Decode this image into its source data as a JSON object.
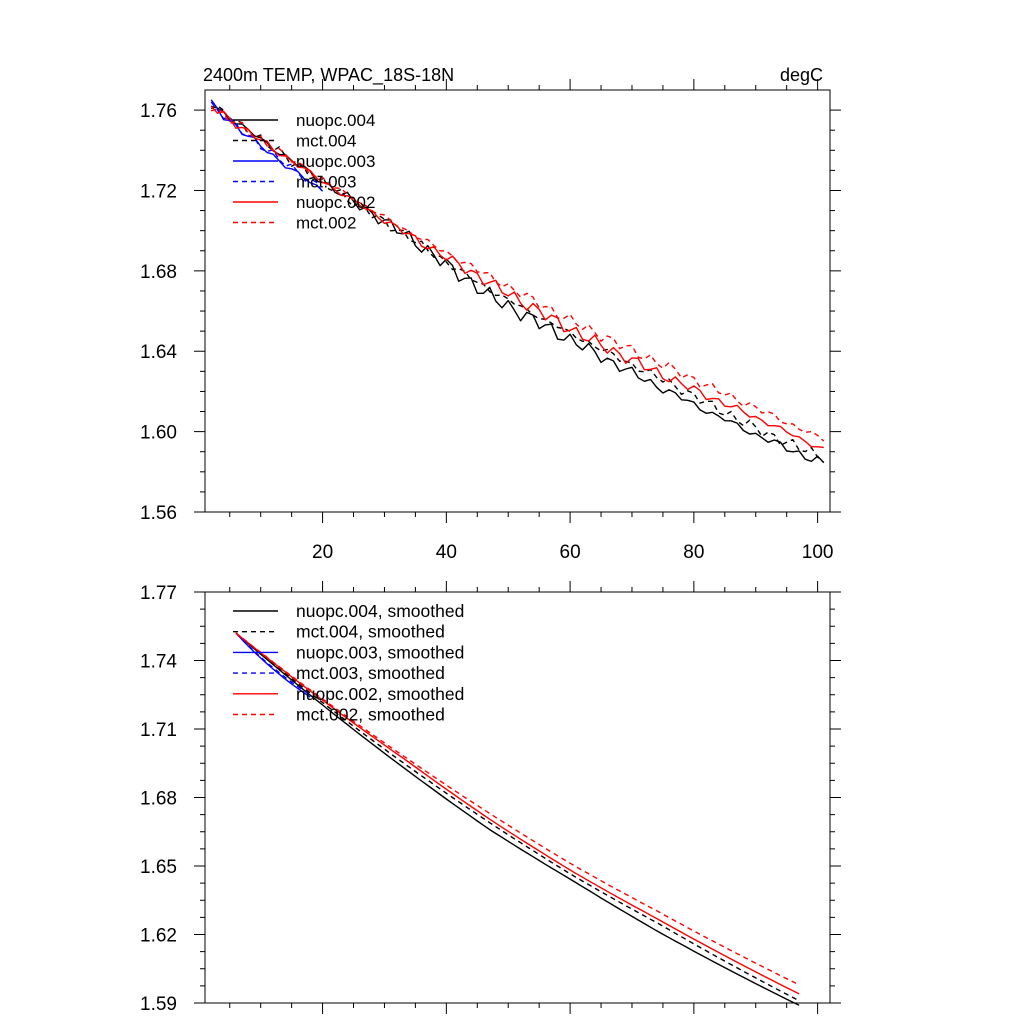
{
  "chart_data": [
    {
      "type": "line",
      "title": "2400m TEMP, WPAC_18S-18N",
      "units": "degC",
      "xlabel": "",
      "ylabel": "",
      "xlim": [
        1,
        102
      ],
      "ylim": [
        1.56,
        1.77
      ],
      "xticks": [
        20,
        40,
        60,
        80,
        100
      ],
      "yticks": [
        1.56,
        1.6,
        1.64,
        1.68,
        1.72,
        1.76
      ],
      "ytick_labels": [
        "1.56",
        "1.60",
        "1.64",
        "1.68",
        "1.72",
        "1.76"
      ],
      "legend_position": "top-left",
      "series": [
        {
          "name": "nuopc.004",
          "color": "#000000",
          "dash": "solid",
          "x_start": 2,
          "x_end": 101,
          "start_value": 1.763,
          "end_value": 1.586,
          "noise": 0.0042,
          "phase": 0.3,
          "bias": [
            [
              0,
              0
            ],
            [
              0.32,
              0.001
            ],
            [
              0.45,
              -0.004
            ],
            [
              0.6,
              -0.003
            ],
            [
              0.75,
              -0.003
            ],
            [
              0.9,
              -0.003
            ],
            [
              1,
              -0.002
            ]
          ]
        },
        {
          "name": "mct.004",
          "color": "#000000",
          "dash": "dash",
          "x_start": 2,
          "x_end": 101,
          "start_value": 1.763,
          "end_value": 1.588,
          "noise": 0.003,
          "phase": 1.7,
          "bias": [
            [
              0,
              0
            ],
            [
              0.32,
              0
            ],
            [
              0.45,
              -0.002
            ],
            [
              0.6,
              -0.001
            ],
            [
              0.75,
              0
            ],
            [
              0.9,
              -0.002
            ],
            [
              1,
              -0.001
            ]
          ]
        },
        {
          "name": "nuopc.003",
          "color": "#0000ff",
          "dash": "solid",
          "x_start": 2,
          "x_end": 20,
          "start_value": 1.763,
          "end_value": 1.72,
          "noise": 0.0035,
          "phase": 2.9,
          "bias": [
            [
              0,
              0
            ],
            [
              0.5,
              0.001
            ],
            [
              1,
              0
            ]
          ]
        },
        {
          "name": "mct.003",
          "color": "#0000ff",
          "dash": "dash",
          "x_start": 2,
          "x_end": 20,
          "start_value": 1.763,
          "end_value": 1.721,
          "noise": 0.0025,
          "phase": 4.1,
          "bias": [
            [
              0,
              0
            ],
            [
              0.5,
              0.001
            ],
            [
              1,
              0
            ]
          ]
        },
        {
          "name": "nuopc.002",
          "color": "#ff0000",
          "dash": "solid",
          "x_start": 2,
          "x_end": 101,
          "start_value": 1.762,
          "end_value": 1.59,
          "noise": 0.0035,
          "phase": 5.3,
          "bias": [
            [
              0,
              0
            ],
            [
              0.3,
              0.001
            ],
            [
              0.45,
              0.001
            ],
            [
              0.6,
              0
            ],
            [
              0.75,
              0.001
            ],
            [
              0.9,
              0.002
            ],
            [
              1,
              0.001
            ]
          ]
        },
        {
          "name": "mct.002",
          "color": "#ff0000",
          "dash": "dash",
          "x_start": 2,
          "x_end": 101,
          "start_value": 1.762,
          "end_value": 1.594,
          "noise": 0.003,
          "phase": 0.9,
          "bias": [
            [
              0,
              0
            ],
            [
              0.3,
              0.001
            ],
            [
              0.45,
              0.002
            ],
            [
              0.6,
              0.002
            ],
            [
              0.75,
              0.003
            ],
            [
              0.9,
              0.003
            ],
            [
              1,
              0.002
            ]
          ]
        }
      ]
    },
    {
      "type": "line",
      "title": "",
      "xlabel": "",
      "ylabel": "",
      "xlim": [
        1,
        102
      ],
      "ylim": [
        1.59,
        1.77
      ],
      "xticks": [
        20,
        40,
        60,
        80,
        100
      ],
      "xtick_labels_visible": false,
      "yticks": [
        1.59,
        1.62,
        1.65,
        1.68,
        1.71,
        1.74,
        1.77
      ],
      "ytick_labels": [
        "1.59",
        "1.62",
        "1.65",
        "1.68",
        "1.71",
        "1.74",
        "1.77"
      ],
      "legend_position": "top-left",
      "series": [
        {
          "name": "nuopc.004, smoothed",
          "color": "#000000",
          "dash": "solid",
          "x_start": 6,
          "x_end": 97,
          "start_value": 1.752,
          "end_value": 1.59,
          "noise": 0,
          "phase": 0,
          "bias": [
            [
              0,
              0
            ],
            [
              0.45,
              -0.003
            ],
            [
              0.6,
              -0.002
            ],
            [
              0.75,
              -0.002
            ],
            [
              1,
              -0.001
            ]
          ]
        },
        {
          "name": "mct.004, smoothed",
          "color": "#000000",
          "dash": "dash",
          "x_start": 6,
          "x_end": 97,
          "start_value": 1.752,
          "end_value": 1.592,
          "noise": 0,
          "phase": 0,
          "bias": [
            [
              0,
              0
            ],
            [
              0.45,
              -0.001
            ],
            [
              0.6,
              -0.001
            ],
            [
              0.75,
              0
            ],
            [
              1,
              -0.001
            ]
          ]
        },
        {
          "name": "nuopc.003, smoothed",
          "color": "#0000ff",
          "dash": "solid",
          "x_start": 6,
          "x_end": 18,
          "start_value": 1.752,
          "end_value": 1.724,
          "noise": 0,
          "phase": 0,
          "bias": [
            [
              0,
              0
            ],
            [
              1,
              0
            ]
          ]
        },
        {
          "name": "mct.003, smoothed",
          "color": "#0000ff",
          "dash": "dash",
          "x_start": 6,
          "x_end": 18,
          "start_value": 1.752,
          "end_value": 1.725,
          "noise": 0,
          "phase": 0,
          "bias": [
            [
              0,
              0
            ],
            [
              1,
              0
            ]
          ]
        },
        {
          "name": "nuopc.002, smoothed",
          "color": "#ff0000",
          "dash": "solid",
          "x_start": 6,
          "x_end": 97,
          "start_value": 1.752,
          "end_value": 1.593,
          "noise": 0,
          "phase": 0,
          "bias": [
            [
              0,
              0
            ],
            [
              0.3,
              0.001
            ],
            [
              0.45,
              0
            ],
            [
              0.6,
              0
            ],
            [
              0.75,
              0.001
            ],
            [
              1,
              0.001
            ]
          ]
        },
        {
          "name": "mct.002, smoothed",
          "color": "#ff0000",
          "dash": "dash",
          "x_start": 6,
          "x_end": 97,
          "start_value": 1.752,
          "end_value": 1.596,
          "noise": 0,
          "phase": 0,
          "bias": [
            [
              0,
              0
            ],
            [
              0.3,
              0.001
            ],
            [
              0.45,
              0.001
            ],
            [
              0.6,
              0.001
            ],
            [
              0.75,
              0.002
            ],
            [
              1,
              0.002
            ]
          ]
        }
      ]
    }
  ]
}
